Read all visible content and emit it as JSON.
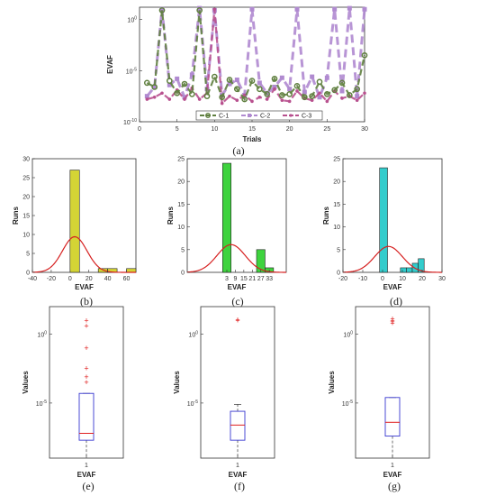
{
  "captions": [
    "(a)",
    "(b)",
    "(c)",
    "(d)",
    "(e)",
    "(f)",
    "(g)"
  ],
  "chart_data": [
    {
      "id": "a",
      "type": "line",
      "title": "",
      "xlabel": "Trials",
      "ylabel": "EVAF",
      "xlim": [
        0,
        30
      ],
      "ylim_exp": [
        -10,
        1.2
      ],
      "yscale": "log",
      "xticks": [
        "0",
        "5",
        "10",
        "15",
        "20",
        "25",
        "30"
      ],
      "yticks": [
        {
          "label": "10",
          "exp": "0",
          "v": 0
        },
        {
          "label": "10",
          "exp": "-5",
          "v": -5
        },
        {
          "label": "10",
          "exp": "-10",
          "v": -10
        }
      ],
      "x": [
        1,
        2,
        3,
        4,
        5,
        6,
        7,
        8,
        9,
        10,
        11,
        12,
        13,
        14,
        15,
        16,
        17,
        18,
        19,
        20,
        21,
        22,
        23,
        24,
        25,
        26,
        27,
        28,
        29,
        30
      ],
      "series": [
        {
          "name": "C-1",
          "color": "#5f7f3f",
          "marker": "circle",
          "log10_values": [
            -6.2,
            -6.6,
            0.9,
            -6.0,
            -7.2,
            -6.3,
            -7.3,
            0.9,
            -7.5,
            -5.6,
            -7.6,
            -5.9,
            -6.8,
            -7.8,
            -6.0,
            -6.8,
            -7.3,
            -5.8,
            -7.4,
            -7.3,
            -6.5,
            -7.6,
            -7.5,
            -6.1,
            -7.3,
            -6.9,
            -6.2,
            -7.4,
            -6.8,
            -3.5
          ]
        },
        {
          "name": "C-2",
          "color": "#b08ad0",
          "marker": "square",
          "log10_values": [
            -7.5,
            -6.6,
            1.0,
            -6.4,
            -5.8,
            -7.6,
            -5.4,
            1.1,
            -6.8,
            0.9,
            -7.4,
            -6.3,
            -5.9,
            -7.4,
            1.0,
            -6.2,
            -7.2,
            -6.6,
            -5.7,
            -6.8,
            1.0,
            -7.1,
            -5.6,
            -7.6,
            -5.7,
            1.0,
            -7.0,
            1.1,
            -7.5,
            1.0
          ]
        },
        {
          "name": "C-3",
          "color": "#b8508e",
          "marker": "dot",
          "log10_values": [
            -7.8,
            -7.6,
            -7.2,
            -7.8,
            -6.9,
            -7.8,
            -6.7,
            -7.8,
            -7.2,
            1.0,
            -8.2,
            -7.5,
            -7.9,
            -7.4,
            -8.0,
            -7.6,
            -7.8,
            -6.8,
            -7.9,
            -8.0,
            -7.0,
            -7.7,
            -7.9,
            -7.2,
            -8.0,
            -7.0,
            -7.7,
            -7.5,
            -7.9,
            -7.2
          ]
        }
      ]
    },
    {
      "id": "b",
      "type": "bar",
      "xlabel": "EVAF",
      "ylabel": "Runs",
      "xlim": [
        -40,
        70
      ],
      "ylim": [
        0,
        30
      ],
      "bar_color": "#d4d435",
      "xticks": [
        "-40",
        "-20",
        "0",
        "20",
        "40",
        "60"
      ],
      "yticks": [
        "0",
        "5",
        "10",
        "15",
        "20",
        "25",
        "30"
      ],
      "bins": [
        {
          "from": 0,
          "to": 10,
          "count": 27
        },
        {
          "from": 30,
          "to": 40,
          "count": 1
        },
        {
          "from": 40,
          "to": 50,
          "count": 1
        },
        {
          "from": 60,
          "to": 70,
          "count": 1
        }
      ],
      "fit": {
        "mean": 5,
        "sd": 13,
        "peak": 9.4
      }
    },
    {
      "id": "c",
      "type": "bar",
      "xlabel": "EVAF",
      "ylabel": "Runs",
      "xlim": [
        -25,
        45
      ],
      "ylim": [
        0,
        25
      ],
      "bar_color": "#3ed33e",
      "xticks": [
        "3",
        "9",
        "15",
        "21",
        "27",
        "33"
      ],
      "yticks": [
        "0",
        "5",
        "10",
        "15",
        "20",
        "25"
      ],
      "bins": [
        {
          "from": 0,
          "to": 6,
          "count": 24
        },
        {
          "from": 24,
          "to": 30,
          "count": 5
        },
        {
          "from": 30,
          "to": 36,
          "count": 1
        }
      ],
      "fit": {
        "mean": 6,
        "sd": 10,
        "peak": 6.1
      }
    },
    {
      "id": "d",
      "type": "bar",
      "xlabel": "EVAF",
      "ylabel": "Runs",
      "xlim": [
        -20,
        30
      ],
      "ylim": [
        0,
        25
      ],
      "bar_color": "#33cccc",
      "xticks": [
        "-20",
        "-10",
        "0",
        "10",
        "20",
        "30"
      ],
      "yticks": [
        "0",
        "5",
        "10",
        "15",
        "20",
        "25"
      ],
      "bins": [
        {
          "from": -1.5,
          "to": 2.5,
          "count": 23
        },
        {
          "from": 9,
          "to": 12,
          "count": 1
        },
        {
          "from": 12,
          "to": 15,
          "count": 1
        },
        {
          "from": 15,
          "to": 18,
          "count": 2
        },
        {
          "from": 18,
          "to": 21,
          "count": 3
        }
      ],
      "fit": {
        "mean": 3,
        "sd": 7,
        "peak": 5.7
      }
    },
    {
      "id": "e",
      "type": "box",
      "xlabel": "EVAF",
      "ylabel": "Values",
      "category": "1",
      "ylim_exp": [
        -9,
        2
      ],
      "yticks": [
        {
          "label": "10",
          "exp": "0",
          "v": 0
        },
        {
          "label": "10",
          "exp": "-5",
          "v": -5
        }
      ],
      "box": {
        "q1": -7.7,
        "median": -7.2,
        "q3": -4.3,
        "whisker_low": -9,
        "whisker_high": -4.3
      },
      "outliers": [
        1.0,
        0.6,
        -1.0,
        -2.5,
        -3.1,
        -3.5
      ]
    },
    {
      "id": "f",
      "type": "box",
      "xlabel": "EVAF",
      "ylabel": "Values",
      "category": "1",
      "ylim_exp": [
        -9,
        2
      ],
      "yticks": [
        {
          "label": "10",
          "exp": "0",
          "v": 0
        },
        {
          "label": "10",
          "exp": "-5",
          "v": -5
        }
      ],
      "box": {
        "q1": -7.7,
        "median": -6.6,
        "q3": -5.6,
        "whisker_low": -9,
        "whisker_high": -5.1
      },
      "outliers": [
        1.0,
        1.05
      ]
    },
    {
      "id": "g",
      "type": "box",
      "xlabel": "EVAF",
      "ylabel": "Values",
      "category": "1",
      "ylim_exp": [
        -9,
        2
      ],
      "yticks": [
        {
          "label": "10",
          "exp": "0",
          "v": 0
        },
        {
          "label": "10",
          "exp": "-5",
          "v": -5
        }
      ],
      "box": {
        "q1": -7.4,
        "median": -6.4,
        "q3": -4.6,
        "whisker_low": -9,
        "whisker_high": -4.6
      },
      "outliers": [
        1.1,
        1.0,
        0.9,
        0.8
      ]
    }
  ]
}
